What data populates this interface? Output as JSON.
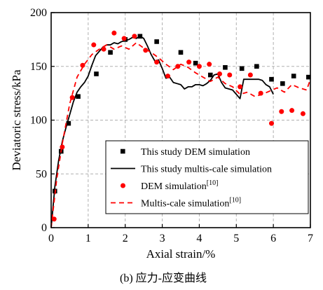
{
  "chart_data": {
    "type": "line",
    "title": "",
    "xlabel": "Axial strain/%",
    "ylabel": "Deviatoric stress/kPa",
    "xlim": [
      0,
      7
    ],
    "ylim": [
      0,
      200
    ],
    "xticks": [
      "0",
      "1",
      "2",
      "3",
      "4",
      "5",
      "6",
      "7"
    ],
    "yticks": [
      "0",
      "50",
      "100",
      "150",
      "200"
    ],
    "grid": true,
    "legend_position": "lower-left",
    "caption": "(b) 应力-应变曲线",
    "series": [
      {
        "name": "This study DEM simulation",
        "superscript": "",
        "kind": "scatter",
        "marker": "square",
        "color": "#000000",
        "x": [
          0.1,
          0.27,
          0.47,
          0.73,
          1.22,
          1.6,
          2.0,
          2.4,
          2.85,
          3.5,
          3.9,
          4.3,
          4.7,
          5.15,
          5.55,
          5.95,
          6.25,
          6.55,
          6.95
        ],
        "y": [
          34,
          71,
          97,
          122,
          143,
          163,
          175,
          178,
          173,
          163,
          153,
          142,
          149,
          148,
          150,
          138,
          134,
          141,
          140
        ]
      },
      {
        "name": "This study multis-cale simulation",
        "superscript": "",
        "kind": "line",
        "style": "solid",
        "color": "#000000",
        "x": [
          0,
          0.1,
          0.2,
          0.3,
          0.4,
          0.5,
          0.6,
          0.7,
          0.8,
          0.9,
          1.0,
          1.1,
          1.2,
          1.3,
          1.4,
          1.5,
          1.6,
          1.7,
          1.8,
          1.9,
          2.0,
          2.1,
          2.2,
          2.3,
          2.4,
          2.5,
          2.6,
          2.7,
          2.8,
          2.9,
          3.0,
          3.1,
          3.2,
          3.3,
          3.4,
          3.5,
          3.6,
          3.7,
          3.8,
          3.9,
          4.0,
          4.1,
          4.2,
          4.3,
          4.4,
          4.5,
          4.6,
          4.7,
          4.8,
          4.9,
          5.0,
          5.1,
          5.2,
          5.3,
          5.4,
          5.5,
          5.6,
          5.7,
          5.8,
          5.9,
          6.0
        ],
        "y": [
          0,
          38,
          62,
          80,
          93,
          105,
          117,
          126,
          131,
          135,
          141,
          151,
          160,
          164,
          168,
          170,
          170,
          172,
          171,
          173,
          174,
          175,
          177,
          176,
          178,
          176,
          169,
          161,
          155,
          156,
          148,
          139,
          140,
          135,
          134,
          133,
          129,
          131,
          131,
          133,
          133,
          132,
          134,
          137,
          142,
          143,
          135,
          130,
          129,
          128,
          124,
          120,
          138,
          138,
          138,
          138,
          138,
          137,
          133,
          131,
          124
        ]
      },
      {
        "name": "DEM simulation",
        "superscript": "[10]",
        "kind": "scatter",
        "marker": "circle",
        "color": "#ff0000",
        "x": [
          0.08,
          0.3,
          0.57,
          0.85,
          1.15,
          1.42,
          1.7,
          1.97,
          2.25,
          2.55,
          2.85,
          3.15,
          3.42,
          3.72,
          4.0,
          4.27,
          4.55,
          4.82,
          5.1,
          5.38,
          5.66,
          5.95,
          6.22,
          6.5,
          6.8
        ],
        "y": [
          8,
          75,
          121,
          151,
          170,
          166,
          181,
          176,
          178,
          165,
          154,
          141,
          150,
          154,
          150,
          152,
          143,
          142,
          131,
          142,
          125,
          97,
          108,
          109,
          106
        ]
      },
      {
        "name": "Multis-cale simulation",
        "superscript": "[10]",
        "kind": "line",
        "style": "dashed",
        "color": "#ff0000",
        "x": [
          0,
          0.15,
          0.3,
          0.5,
          0.7,
          0.9,
          1.1,
          1.3,
          1.5,
          1.7,
          1.9,
          2.1,
          2.3,
          2.5,
          2.7,
          2.9,
          3.1,
          3.3,
          3.5,
          3.7,
          3.9,
          4.1,
          4.3,
          4.5,
          4.7,
          4.9,
          5.1,
          5.3,
          5.5,
          5.7,
          5.9,
          6.1,
          6.3,
          6.5,
          6.7,
          6.9,
          7.0
        ],
        "y": [
          0,
          45,
          78,
          115,
          140,
          152,
          161,
          166,
          170,
          166,
          169,
          166,
          172,
          167,
          163,
          158,
          152,
          147,
          152,
          149,
          144,
          140,
          136,
          140,
          134,
          131,
          124,
          126,
          122,
          124,
          127,
          130,
          126,
          133,
          130,
          128,
          138
        ]
      }
    ]
  }
}
